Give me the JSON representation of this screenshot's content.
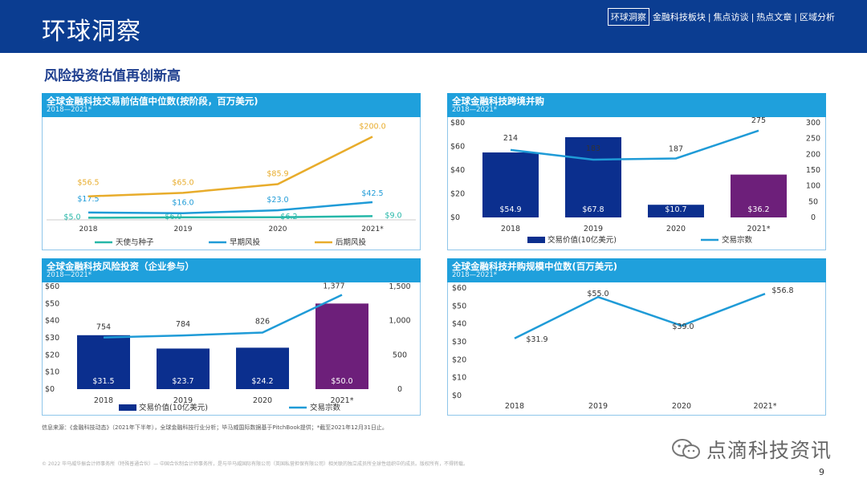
{
  "header": {
    "title": "环球洞察",
    "nav_active": "环球洞察",
    "nav_items": [
      "金融科技板块",
      "焦点访谈",
      "热点文章",
      "区域分析"
    ]
  },
  "subtitle": "风险投资估值再创新高",
  "source_note": "信息来源：《金融科技动态》（2021年下半年），全球金融科技行业分析；毕马威国际数据基于PitchBook提供；*截至2021年12月31日止。",
  "copyright": "© 2022 毕马威华振会计师事务所（特殊普通合伙）— 中国合伙制会计师事务所，是与毕马威国际有限公司（英国私营担保有限公司）相关联的独立成员所全球性组织中的成员。版权所有，不得转载。",
  "watermark": "点滴科技资讯",
  "page_number": "9",
  "colors": {
    "banner": "#0b3d91",
    "panel_header": "#1fa0dc",
    "bar_blue": "#0b2f8e",
    "bar_purple": "#6d1f7a",
    "line_cyan": "#1f9bd7",
    "line_orange": "#e8ac2b",
    "line_teal": "#25b7a8"
  },
  "chart_data": [
    {
      "id": "c1",
      "type": "line",
      "title": "全球金融科技交易前估值中位数(按阶段，百万美元)",
      "subtitle": "2018—2021*",
      "categories": [
        "2018",
        "2019",
        "2020",
        "2021*"
      ],
      "series": [
        {
          "name": "天使与种子",
          "color": "#25b7a8",
          "values": [
            5.0,
            6.0,
            6.2,
            9.0
          ],
          "labels": [
            "$5.0",
            "$6.0",
            "$6.2",
            "$9.0"
          ]
        },
        {
          "name": "早期风投",
          "color": "#1f9bd7",
          "values": [
            17.5,
            16.0,
            23.0,
            42.5
          ],
          "labels": [
            "$17.5",
            "$16.0",
            "$23.0",
            "$42.5"
          ]
        },
        {
          "name": "后期风投",
          "color": "#e8ac2b",
          "values": [
            56.5,
            65.0,
            85.9,
            200.0
          ],
          "labels": [
            "$56.5",
            "$65.0",
            "$85.9",
            "$200.0"
          ]
        }
      ],
      "ylim": [
        0,
        220
      ],
      "grid": false
    },
    {
      "id": "c2",
      "type": "bar",
      "title": "全球金融科技跨境并购",
      "subtitle": "2018—2021*",
      "categories": [
        "2018",
        "2019",
        "2020",
        "2021*"
      ],
      "bars": {
        "name": "交易价值(10亿美元)",
        "values": [
          54.9,
          67.8,
          10.7,
          36.2
        ],
        "labels": [
          "$54.9",
          "$67.8",
          "$10.7",
          "$36.2"
        ],
        "colors": [
          "#0b2f8e",
          "#0b2f8e",
          "#0b2f8e",
          "#6d1f7a"
        ]
      },
      "line": {
        "name": "交易宗数",
        "values": [
          214,
          183,
          187,
          275
        ],
        "labels": [
          "214",
          "183",
          "187",
          "275"
        ],
        "color": "#1f9bd7"
      },
      "y_left": {
        "min": 0,
        "max": 80,
        "ticks": [
          "$0",
          "$20",
          "$40",
          "$60",
          "$80"
        ]
      },
      "y_right": {
        "min": 0,
        "max": 300,
        "ticks": [
          "0",
          "50",
          "100",
          "150",
          "200",
          "250",
          "300"
        ]
      }
    },
    {
      "id": "c3",
      "type": "bar",
      "title": "全球金融科技风险投资（企业参与）",
      "subtitle": "2018—2021*",
      "categories": [
        "2018",
        "2019",
        "2020",
        "2021*"
      ],
      "bars": {
        "name": "交易价值(10亿美元)",
        "values": [
          31.5,
          23.7,
          24.2,
          50.0
        ],
        "labels": [
          "$31.5",
          "$23.7",
          "$24.2",
          "$50.0"
        ],
        "colors": [
          "#0b2f8e",
          "#0b2f8e",
          "#0b2f8e",
          "#6d1f7a"
        ]
      },
      "line": {
        "name": "交易宗数",
        "values": [
          754,
          784,
          826,
          1377
        ],
        "labels": [
          "754",
          "784",
          "826",
          "1,377"
        ],
        "color": "#1f9bd7"
      },
      "y_left": {
        "min": 0,
        "max": 60,
        "ticks": [
          "$0",
          "$10",
          "$20",
          "$30",
          "$40",
          "$50",
          "$60"
        ]
      },
      "y_right": {
        "min": 0,
        "max": 1500,
        "ticks": [
          "0",
          "500",
          "1,000",
          "1,500"
        ]
      }
    },
    {
      "id": "c4",
      "type": "line",
      "title": "全球金融科技并购规模中位数(百万美元)",
      "subtitle": "2018—2021*",
      "categories": [
        "2018",
        "2019",
        "2020",
        "2021*"
      ],
      "series": [
        {
          "name": "",
          "color": "#1f9bd7",
          "values": [
            31.9,
            55.0,
            39.0,
            56.8
          ],
          "labels": [
            "$31.9",
            "$55.0",
            "$39.0",
            "$56.8"
          ]
        }
      ],
      "y_left": {
        "min": 0,
        "max": 60,
        "ticks": [
          "$0",
          "$10",
          "$20",
          "$30",
          "$40",
          "$50",
          "$60"
        ]
      }
    }
  ]
}
